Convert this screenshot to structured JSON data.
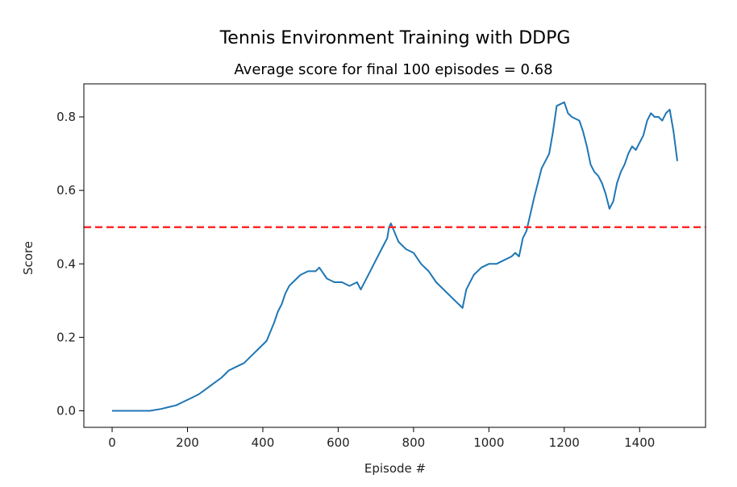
{
  "chart_data": {
    "type": "line",
    "title": "Tennis Environment Training with DDPG",
    "subtitle": "Average score for final 100 episodes = 0.68",
    "xlabel": "Episode #",
    "ylabel": "Score",
    "xlim": [
      -75,
      1575
    ],
    "ylim": [
      -0.045,
      0.89
    ],
    "xticks": [
      0,
      200,
      400,
      600,
      800,
      1000,
      1200,
      1400
    ],
    "yticks": [
      0.0,
      0.2,
      0.4,
      0.6,
      0.8
    ],
    "xtick_labels": [
      "0",
      "200",
      "400",
      "600",
      "800",
      "1000",
      "1200",
      "1400"
    ],
    "ytick_labels": [
      "0.0",
      "0.2",
      "0.4",
      "0.6",
      "0.8"
    ],
    "threshold": {
      "value": 0.5,
      "style": "dashed",
      "color": "#ff2a2a"
    },
    "series": [
      {
        "color": "#1f77b4",
        "x": [
          0,
          50,
          100,
          130,
          150,
          170,
          190,
          210,
          230,
          250,
          270,
          290,
          310,
          330,
          350,
          370,
          390,
          410,
          430,
          440,
          450,
          460,
          470,
          480,
          500,
          520,
          540,
          550,
          570,
          590,
          610,
          630,
          650,
          660,
          680,
          700,
          720,
          730,
          735,
          740,
          760,
          780,
          800,
          820,
          840,
          860,
          880,
          900,
          920,
          930,
          940,
          960,
          980,
          1000,
          1020,
          1040,
          1060,
          1070,
          1080,
          1090,
          1100,
          1120,
          1140,
          1160,
          1170,
          1180,
          1200,
          1210,
          1220,
          1240,
          1250,
          1260,
          1270,
          1280,
          1290,
          1300,
          1310,
          1320,
          1330,
          1340,
          1350,
          1360,
          1370,
          1380,
          1390,
          1400,
          1410,
          1420,
          1430,
          1440,
          1450,
          1460,
          1470,
          1480,
          1490,
          1500
        ],
        "values": [
          0.0,
          0.0,
          0.0,
          0.005,
          0.01,
          0.015,
          0.025,
          0.035,
          0.045,
          0.06,
          0.075,
          0.09,
          0.11,
          0.12,
          0.13,
          0.15,
          0.17,
          0.19,
          0.24,
          0.27,
          0.29,
          0.32,
          0.34,
          0.35,
          0.37,
          0.38,
          0.38,
          0.39,
          0.36,
          0.35,
          0.35,
          0.34,
          0.35,
          0.33,
          0.37,
          0.41,
          0.45,
          0.47,
          0.5,
          0.51,
          0.46,
          0.44,
          0.43,
          0.4,
          0.38,
          0.35,
          0.33,
          0.31,
          0.29,
          0.28,
          0.33,
          0.37,
          0.39,
          0.4,
          0.4,
          0.41,
          0.42,
          0.43,
          0.42,
          0.47,
          0.49,
          0.58,
          0.66,
          0.7,
          0.76,
          0.83,
          0.84,
          0.81,
          0.8,
          0.79,
          0.76,
          0.72,
          0.67,
          0.65,
          0.64,
          0.62,
          0.59,
          0.55,
          0.57,
          0.62,
          0.65,
          0.67,
          0.7,
          0.72,
          0.71,
          0.73,
          0.75,
          0.79,
          0.81,
          0.8,
          0.8,
          0.79,
          0.81,
          0.82,
          0.76,
          0.68
        ]
      }
    ]
  }
}
